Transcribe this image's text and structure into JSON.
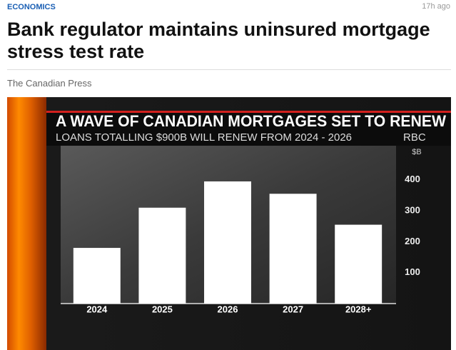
{
  "header": {
    "category": "ECONOMICS",
    "time": "17h ago"
  },
  "article": {
    "title": "Bank regulator maintains uninsured mortgage stress test rate",
    "source": "The Canadian Press"
  },
  "chart_data": {
    "type": "bar",
    "title": "A WAVE OF CANADIAN MORTGAGES SET TO RENEW",
    "subtitle": "LOANS TOTALLING $900B WILL RENEW FROM 2024 - 2026",
    "credit": "RBC",
    "y_label": "$B",
    "categories": [
      "2024",
      "2025",
      "2026",
      "2027",
      "2028+"
    ],
    "values": [
      180,
      310,
      395,
      355,
      255
    ],
    "color": "#ffffff",
    "ylim": [
      0,
      500
    ],
    "yticks": [
      100,
      200,
      300,
      400
    ],
    "grid": false
  }
}
